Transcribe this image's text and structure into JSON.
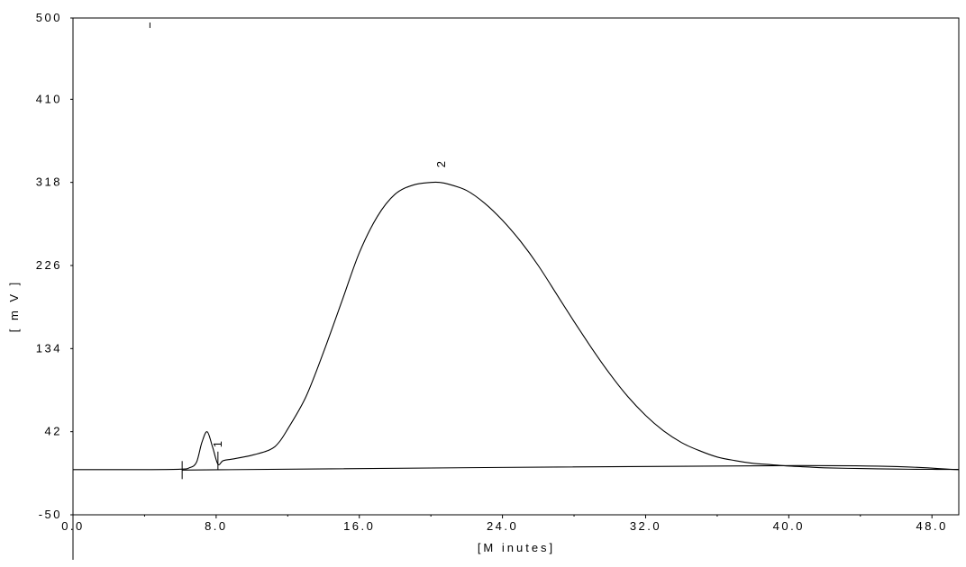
{
  "chart_data": {
    "type": "line",
    "title": "",
    "xlabel": "[M inutes]",
    "ylabel": "[ m V ]",
    "xlim": [
      0,
      49.5
    ],
    "ylim": [
      -50,
      500
    ],
    "x_ticks": [
      0,
      8,
      16,
      24,
      32,
      40,
      48
    ],
    "x_tick_labels": [
      "0.0",
      "8.0",
      "16.0",
      "24.0",
      "32.0",
      "40.0",
      "48.0"
    ],
    "y_ticks": [
      -50,
      42,
      134,
      226,
      318,
      410,
      500
    ],
    "y_tick_labels": [
      "-50",
      "42",
      "134",
      "226",
      "318",
      "410",
      "500"
    ],
    "grid": false,
    "series": [
      {
        "x": [
          0,
          4,
          6,
          6.5,
          6.9,
          7.2,
          7.5,
          7.8,
          8.1,
          8.4,
          9,
          10,
          11,
          11.5,
          12,
          13,
          14,
          15,
          16,
          17,
          18,
          19,
          20,
          20.5,
          21,
          22,
          23,
          24,
          25,
          26,
          27,
          28,
          29,
          30,
          31,
          32,
          33,
          34,
          35,
          36,
          37,
          38,
          39,
          40,
          41,
          42,
          44,
          46,
          48,
          49.5
        ],
        "y": [
          0,
          0,
          0.5,
          2,
          8,
          30,
          42,
          25,
          6,
          10,
          12,
          16,
          22,
          30,
          45,
          80,
          130,
          185,
          240,
          280,
          305,
          315,
          318,
          318,
          316,
          309,
          295,
          276,
          253,
          226,
          195,
          164,
          134,
          106,
          81,
          60,
          43,
          30,
          21,
          14,
          10,
          7,
          5.5,
          4,
          3,
          2,
          1.2,
          0.6,
          0.3,
          0.2
        ]
      },
      {
        "x": [
          6.1,
          40.5,
          49.5
        ],
        "y": [
          -0.5,
          4.5,
          0
        ]
      }
    ],
    "peak_markers": [
      {
        "label": "1",
        "x": 8.3,
        "y": 28
      },
      {
        "label": "2",
        "x": 20.8,
        "y": 338
      }
    ],
    "integration_ticks": [
      {
        "x": 6.1,
        "y": -0.5
      },
      {
        "x": 8.1,
        "y": 10
      }
    ],
    "stray_tick": {
      "x": 4.3,
      "y": 492
    }
  }
}
